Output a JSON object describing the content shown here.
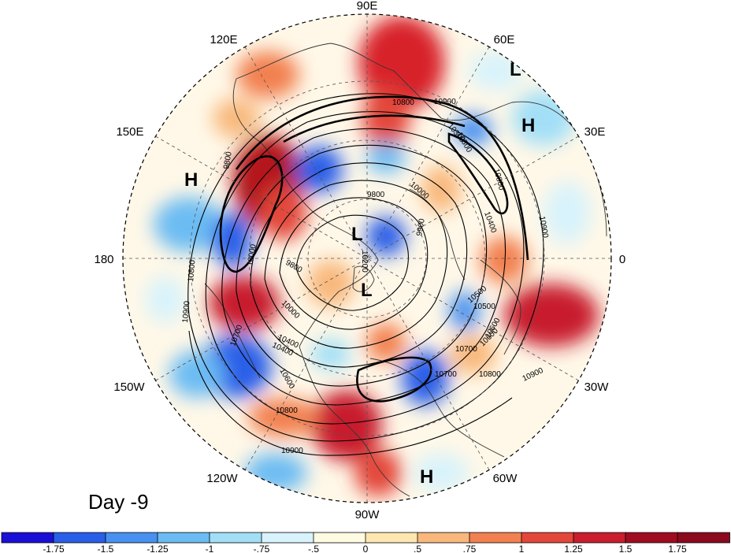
{
  "panel_label": "Day -9",
  "longitude_labels": [
    "90E",
    "60E",
    "30E",
    "0",
    "30W",
    "60W",
    "90W",
    "120W",
    "150W",
    "180",
    "150E",
    "120E"
  ],
  "contour_labels": [
    "10900",
    "10800",
    "10700",
    "10600",
    "10500",
    "10400",
    "10300",
    "10200",
    "10000",
    "9900",
    "9800",
    "10800",
    "10900",
    "10000",
    "9800",
    "10400",
    "10600",
    "10700",
    "10800",
    "10900",
    "10400",
    "10500",
    "10600",
    "10700",
    "10800",
    "10900",
    "10000",
    "9800",
    "10300",
    "10800",
    "10900"
  ],
  "centers": [
    {
      "type": "L"
    },
    {
      "type": "H"
    },
    {
      "type": "H"
    },
    {
      "type": "L"
    },
    {
      "type": "L"
    },
    {
      "type": "H"
    }
  ],
  "colorbar": {
    "ticks": [
      "-1.75",
      "-1.5",
      "-1.25",
      "-1",
      "-.75",
      "-.5",
      "0",
      ".5",
      ".75",
      "1",
      "1.25",
      "1.5",
      "1.75"
    ],
    "colors": [
      "#1a0fd6",
      "#2a5ee8",
      "#4891f0",
      "#6cbcf3",
      "#a2dff7",
      "#d8f3fb",
      "#fffbe2",
      "#fde7b0",
      "#f8b87c",
      "#f28050",
      "#e3473a",
      "#c81e2e",
      "#a00d22",
      "#8b0a1e"
    ]
  },
  "colors": {
    "grid": "#555555",
    "contour": "#000000",
    "coast": "#333333"
  }
}
